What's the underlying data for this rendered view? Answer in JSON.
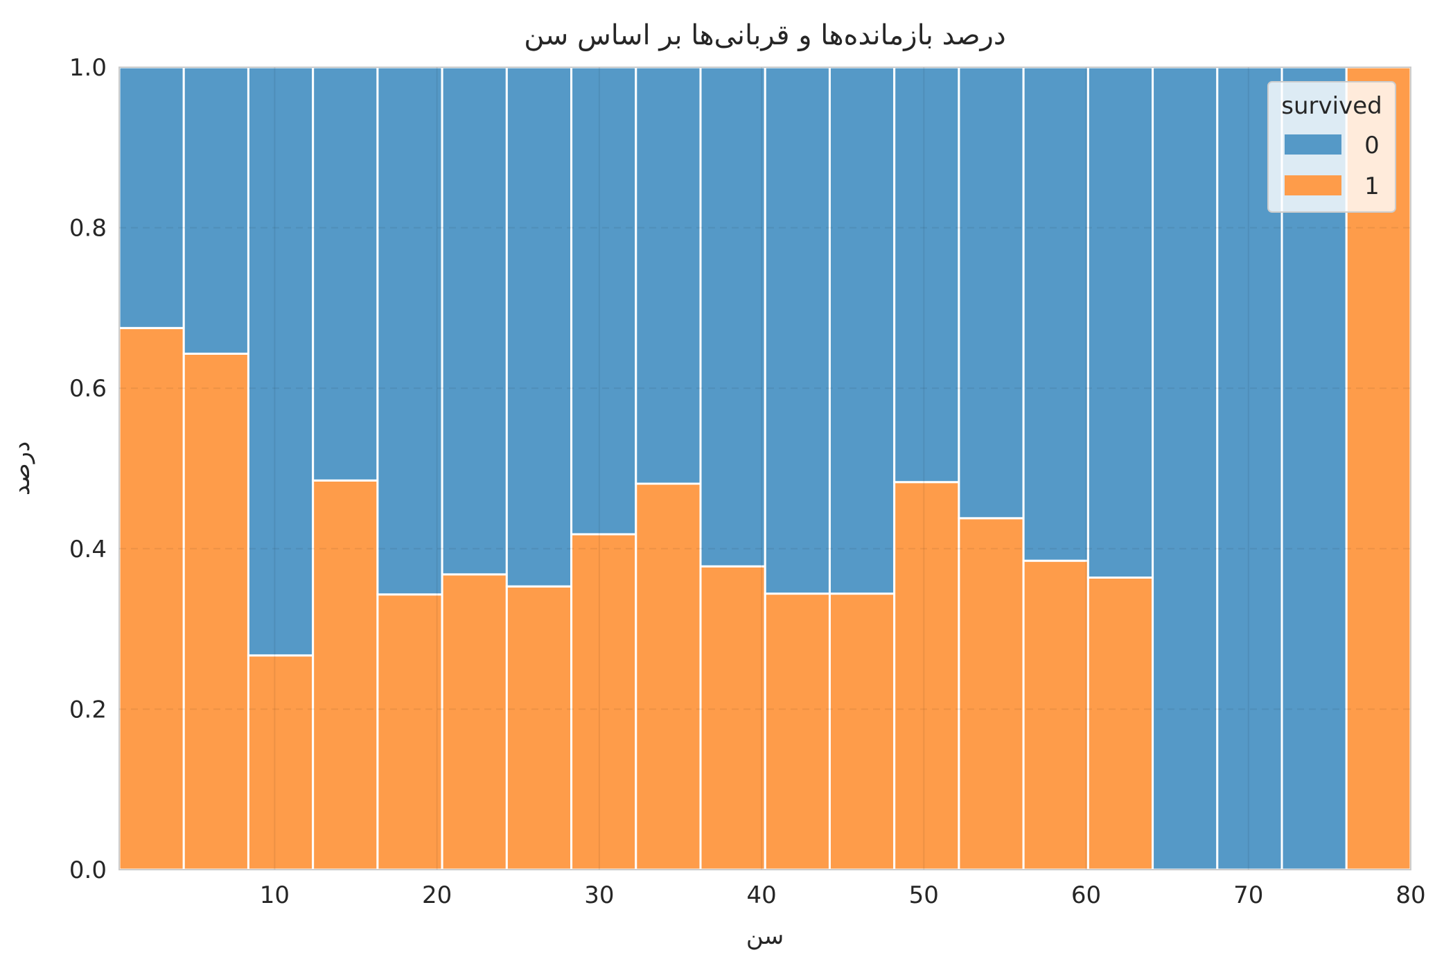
{
  "chart_data": {
    "type": "bar",
    "stacked": true,
    "normalized": true,
    "title": "درصد بازمانده‌ها و قربانی‌ها بر اساس سن",
    "xlabel": "سن",
    "ylabel": "درصد",
    "xlim": [
      0.42,
      80
    ],
    "ylim": [
      0,
      1
    ],
    "x_ticks": [
      10,
      20,
      30,
      40,
      50,
      60,
      70,
      80
    ],
    "y_ticks": [
      0.0,
      0.2,
      0.4,
      0.6,
      0.8,
      1.0
    ],
    "x_tick_labels": [
      "10",
      "20",
      "30",
      "40",
      "50",
      "60",
      "70",
      "80"
    ],
    "y_tick_labels": [
      "0.0",
      "0.2",
      "0.4",
      "0.6",
      "0.8",
      "1.0"
    ],
    "bin_edges": [
      0.42,
      4.4,
      8.38,
      12.36,
      16.34,
      20.32,
      24.3,
      28.28,
      32.26,
      36.24,
      40.22,
      44.2,
      48.18,
      52.16,
      56.14,
      60.12,
      64.1,
      68.08,
      72.06,
      76.04,
      80.0
    ],
    "legend": {
      "title": "survived",
      "position": "top-right"
    },
    "grid": true,
    "series": [
      {
        "name": "0",
        "color": "#5599c7",
        "values": [
          0.325,
          0.357,
          0.733,
          0.515,
          0.657,
          0.632,
          0.647,
          0.582,
          0.519,
          0.622,
          0.656,
          0.656,
          0.517,
          0.562,
          0.615,
          0.636,
          1.0,
          1.0,
          1.0,
          0.0
        ]
      },
      {
        "name": "1",
        "color": "#fe9c4a",
        "values": [
          0.675,
          0.643,
          0.267,
          0.485,
          0.343,
          0.368,
          0.353,
          0.418,
          0.481,
          0.378,
          0.344,
          0.344,
          0.483,
          0.438,
          0.385,
          0.364,
          0.0,
          0.0,
          0.0,
          1.0
        ]
      }
    ]
  }
}
